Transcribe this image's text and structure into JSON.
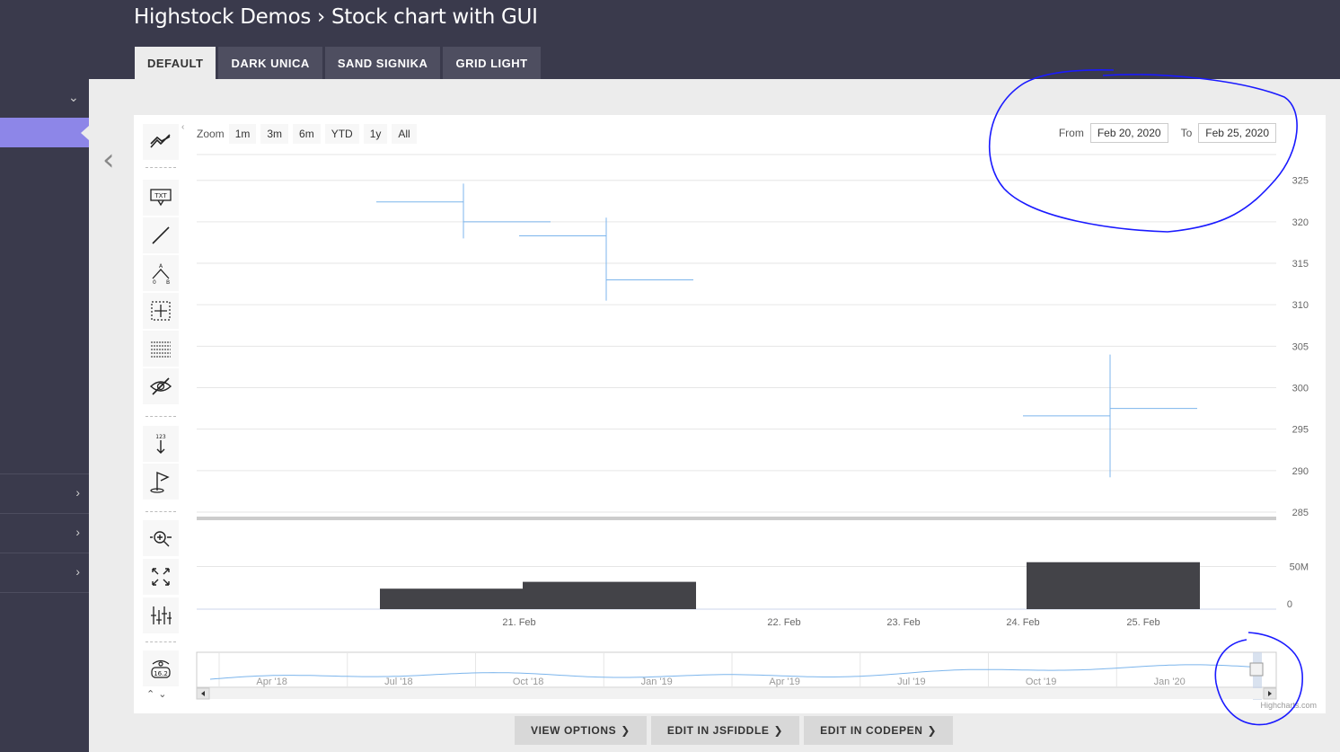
{
  "page": {
    "title": "Highstock Demos › Stock chart with GUI"
  },
  "tabs": [
    {
      "label": "DEFAULT",
      "active": true
    },
    {
      "label": "DARK UNICA",
      "active": false
    },
    {
      "label": "SAND SIGNIKA",
      "active": false
    },
    {
      "label": "GRID LIGHT",
      "active": false
    }
  ],
  "sidebar": {
    "toggle_icon": "chevron-down-icon",
    "row_icon": "chevron-right-icon"
  },
  "chart_toolbar": {
    "buttons": [
      "indicators-icon",
      "label-annotation-icon",
      "line-icon",
      "measure-icon",
      "crosshair-icon",
      "fibonacci-icon",
      "toggle-annotations-icon",
      "vertical-counter-icon",
      "flag-icon",
      "zoom-change-icon",
      "fullscreen-icon",
      "current-price-icon",
      "save-chart-icon"
    ],
    "label_text": "TXT",
    "counter_text": "123",
    "price_text": "16.2"
  },
  "zoom": {
    "label": "Zoom",
    "buttons": [
      "1m",
      "3m",
      "6m",
      "YTD",
      "1y",
      "All"
    ]
  },
  "range": {
    "from_label": "From",
    "from_value": "Feb 20, 2020",
    "to_label": "To",
    "to_value": "Feb 25, 2020"
  },
  "credit": "Highcharts.com",
  "actions": [
    {
      "label": "VIEW OPTIONS"
    },
    {
      "label": "EDIT IN JSFIDDLE"
    },
    {
      "label": "EDIT IN CODEPEN"
    }
  ],
  "colors": {
    "header": "#3a3a4c",
    "accent": "#8d86e8",
    "ohlc": "#7cb5ec",
    "volume": "#434348",
    "annotation": "#1a1aff"
  },
  "chart_data": {
    "type": "ohlc",
    "price": {
      "ohlc": [
        {
          "x": "2020-02-20",
          "open": 322.4,
          "high": 324.6,
          "low": 318.0,
          "close": 320.0
        },
        {
          "x": "2020-02-21",
          "open": 318.3,
          "high": 320.5,
          "low": 310.5,
          "close": 313.0
        },
        {
          "x": "2020-02-24",
          "open": 296.6,
          "high": 304.0,
          "low": 289.2,
          "close": 297.5
        }
      ],
      "yticks": [
        285,
        290,
        295,
        300,
        305,
        310,
        315,
        320,
        325
      ],
      "ylim": [
        285,
        328
      ]
    },
    "volume": {
      "values": [
        {
          "x": "2020-02-20",
          "value": 24000000
        },
        {
          "x": "2020-02-21",
          "value": 32000000
        },
        {
          "x": "2020-02-24",
          "value": 55000000
        }
      ],
      "yticks": [
        "0",
        "50M"
      ],
      "ylim": [
        0,
        60000000
      ]
    },
    "xticks": [
      {
        "x": "2020-02-21",
        "label": "21. Feb"
      },
      {
        "x": "2020-02-22",
        "label": "22. Feb"
      },
      {
        "x": "2020-02-23",
        "label": "23. Feb"
      },
      {
        "x": "2020-02-24",
        "label": "24. Feb"
      },
      {
        "x": "2020-02-25",
        "label": "25. Feb"
      }
    ],
    "navigator": {
      "labels": [
        "Apr '18",
        "Jul '18",
        "Oct '18",
        "Jan '19",
        "Apr '19",
        "Jul '19",
        "Oct '19",
        "Jan '20"
      ]
    },
    "grid": true
  }
}
